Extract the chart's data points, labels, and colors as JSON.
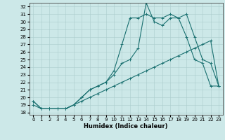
{
  "xlabel": "Humidex (Indice chaleur)",
  "bg_color": "#cce8e8",
  "line_color": "#1a7070",
  "grid_color": "#aacccc",
  "xlim": [
    -0.5,
    23.5
  ],
  "ylim": [
    17.7,
    32.5
  ],
  "yticks": [
    18,
    19,
    20,
    21,
    22,
    23,
    24,
    25,
    26,
    27,
    28,
    29,
    30,
    31,
    32
  ],
  "xticks": [
    0,
    1,
    2,
    3,
    4,
    5,
    6,
    7,
    8,
    9,
    10,
    11,
    12,
    13,
    14,
    15,
    16,
    17,
    18,
    19,
    20,
    21,
    22,
    23
  ],
  "series1_x": [
    0,
    1,
    2,
    3,
    4,
    5,
    6,
    7,
    8,
    9,
    10,
    11,
    12,
    13,
    14,
    15,
    16,
    17,
    18,
    19,
    20,
    21,
    22,
    23
  ],
  "series1_y": [
    19.0,
    18.5,
    18.5,
    18.5,
    18.5,
    19.0,
    19.5,
    20.0,
    20.5,
    21.0,
    21.5,
    22.0,
    22.5,
    23.0,
    23.5,
    24.0,
    24.5,
    25.0,
    25.5,
    26.0,
    26.5,
    27.0,
    27.5,
    21.5
  ],
  "series2_x": [
    0,
    1,
    2,
    3,
    4,
    5,
    6,
    7,
    8,
    9,
    10,
    11,
    12,
    13,
    14,
    15,
    16,
    17,
    18,
    19,
    20,
    21,
    22,
    23
  ],
  "series2_y": [
    19.5,
    18.5,
    18.5,
    18.5,
    18.5,
    19.0,
    20.0,
    21.0,
    21.5,
    22.0,
    23.0,
    24.5,
    25.0,
    26.5,
    32.5,
    30.0,
    29.5,
    30.5,
    30.5,
    28.0,
    25.0,
    24.5,
    21.5,
    21.5
  ],
  "series3_x": [
    0,
    1,
    2,
    3,
    4,
    5,
    6,
    7,
    8,
    9,
    10,
    11,
    12,
    13,
    14,
    15,
    16,
    17,
    18,
    19,
    20,
    21,
    22,
    23
  ],
  "series3_y": [
    19.5,
    18.5,
    18.5,
    18.5,
    18.5,
    19.0,
    20.0,
    21.0,
    21.5,
    22.0,
    23.5,
    27.0,
    30.5,
    30.5,
    31.0,
    30.5,
    30.5,
    31.0,
    30.5,
    31.0,
    28.0,
    25.0,
    24.5,
    21.5
  ],
  "tick_fontsize": 5,
  "xlabel_fontsize": 6,
  "linewidth": 0.8,
  "markersize": 2.5
}
